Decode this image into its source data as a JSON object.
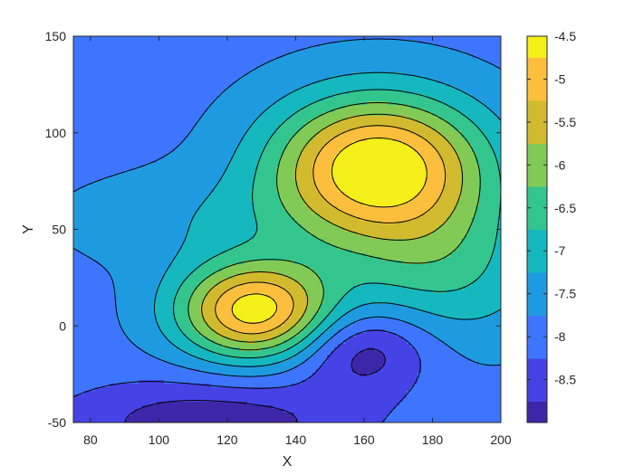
{
  "chart_data": {
    "type": "filled-contour",
    "title": "",
    "xlabel": "X",
    "ylabel": "Y",
    "xlim": [
      75,
      200
    ],
    "ylim": [
      -50,
      150
    ],
    "xticks": [
      80,
      100,
      120,
      140,
      160,
      180,
      200
    ],
    "yticks": [
      -50,
      0,
      50,
      100,
      150
    ],
    "grid": false,
    "colormap": "parula",
    "colorbar": {
      "location": "right",
      "range": [
        -9.0,
        -4.5
      ],
      "ticks": [
        -4.5,
        -5,
        -5.5,
        -6,
        -6.5,
        -7,
        -7.5,
        -8,
        -8.5
      ],
      "tick_labels": [
        "-4.5",
        "-5",
        "-5.5",
        "-6",
        "-6.5",
        "-7",
        "-7.5",
        "-8",
        "-8.5"
      ]
    },
    "levels": [
      -8.75,
      -8.25,
      -7.75,
      -7.25,
      -6.75,
      -6.25,
      -5.75,
      -5.25,
      -4.75
    ],
    "level_colors": [
      "#3D26A8",
      "#4543E6",
      "#3D75FE",
      "#1E9BE0",
      "#14B8BE",
      "#33C58E",
      "#80CA55",
      "#D2BA2F",
      "#FBBE3D",
      "#F5EF1A"
    ],
    "field": {
      "background": -7.9,
      "features": [
        {
          "kind": "peak",
          "x": 164,
          "y": 83,
          "amplitude": 3.6,
          "sigma_x": 22,
          "sigma_y": 26
        },
        {
          "kind": "peak",
          "x": 128,
          "y": 8,
          "amplitude": 3.4,
          "sigma_x": 16,
          "sigma_y": 18
        },
        {
          "kind": "peak",
          "x": 182,
          "y": 30,
          "amplitude": 1.2,
          "sigma_x": 22,
          "sigma_y": 28
        },
        {
          "kind": "peak",
          "x": 115,
          "y": 55,
          "amplitude": 0.5,
          "sigma_x": 30,
          "sigma_y": 18
        },
        {
          "kind": "valley",
          "x": 160,
          "y": -12,
          "amplitude": -1.3,
          "sigma_x": 14,
          "sigma_y": 16
        },
        {
          "kind": "valley",
          "x": 115,
          "y": -50,
          "amplitude": -1.2,
          "sigma_x": 30,
          "sigma_y": 16
        }
      ]
    }
  }
}
